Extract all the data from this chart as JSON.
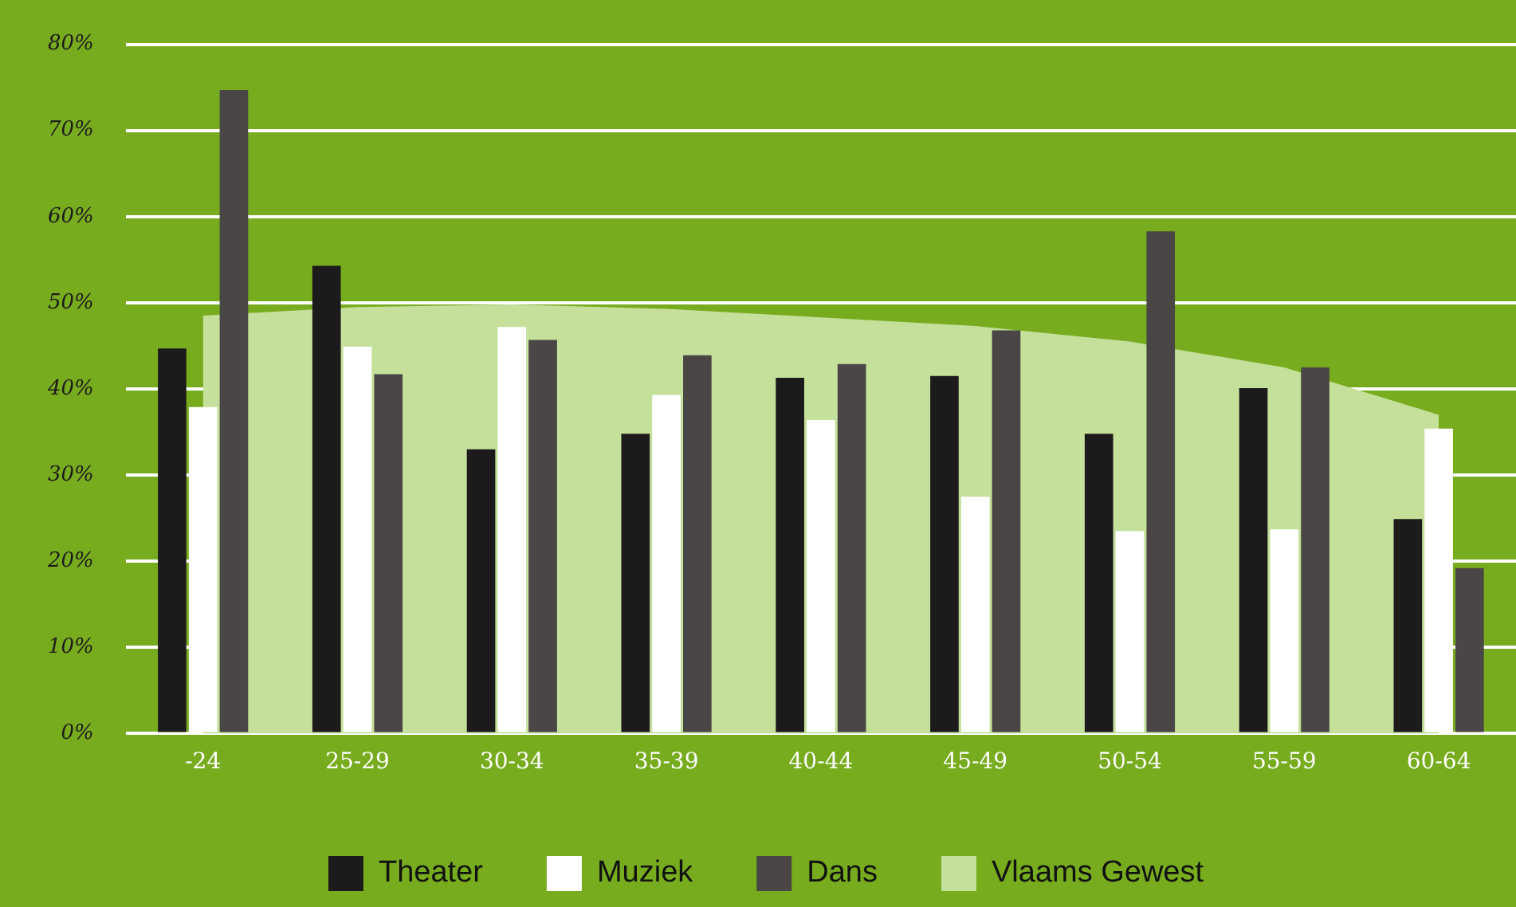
{
  "chart_data": {
    "type": "bar",
    "categories": [
      "-24",
      "25-29",
      "30-34",
      "35-39",
      "40-44",
      "45-49",
      "50-54",
      "55-59",
      "60-64"
    ],
    "series": [
      {
        "name": "Theater",
        "color": "#1d1a1b",
        "values": [
          44.7,
          54.3,
          33,
          34.8,
          41.3,
          41.5,
          34.8,
          40.1,
          24.9
        ]
      },
      {
        "name": "Muziek",
        "color": "#ffffff",
        "values": [
          37.9,
          44.9,
          47.2,
          39.3,
          36.4,
          27.5,
          23.5,
          23.7,
          35.4
        ]
      },
      {
        "name": "Dans",
        "color": "#4a4646",
        "values": [
          74.7,
          41.7,
          45.7,
          43.9,
          42.9,
          46.8,
          58.3,
          42.5,
          19.2
        ]
      },
      {
        "name": "Vlaams Gewest",
        "type": "area",
        "color": "#c4e09a",
        "values": [
          48.5,
          49.5,
          49.8,
          49.3,
          48.3,
          47.3,
          45.5,
          42.5,
          37
        ]
      }
    ],
    "ylim": [
      0,
      80
    ],
    "yticks": [
      {
        "value": 0,
        "label": "0%"
      },
      {
        "value": 10,
        "label": "10%"
      },
      {
        "value": 20,
        "label": "20%"
      },
      {
        "value": 30,
        "label": "30%"
      },
      {
        "value": 40,
        "label": "40%"
      },
      {
        "value": 50,
        "label": "50%"
      },
      {
        "value": 60,
        "label": "60%"
      },
      {
        "value": 70,
        "label": "70%"
      },
      {
        "value": 80,
        "label": "80%"
      }
    ],
    "grid": "y",
    "legend": "bottom"
  }
}
